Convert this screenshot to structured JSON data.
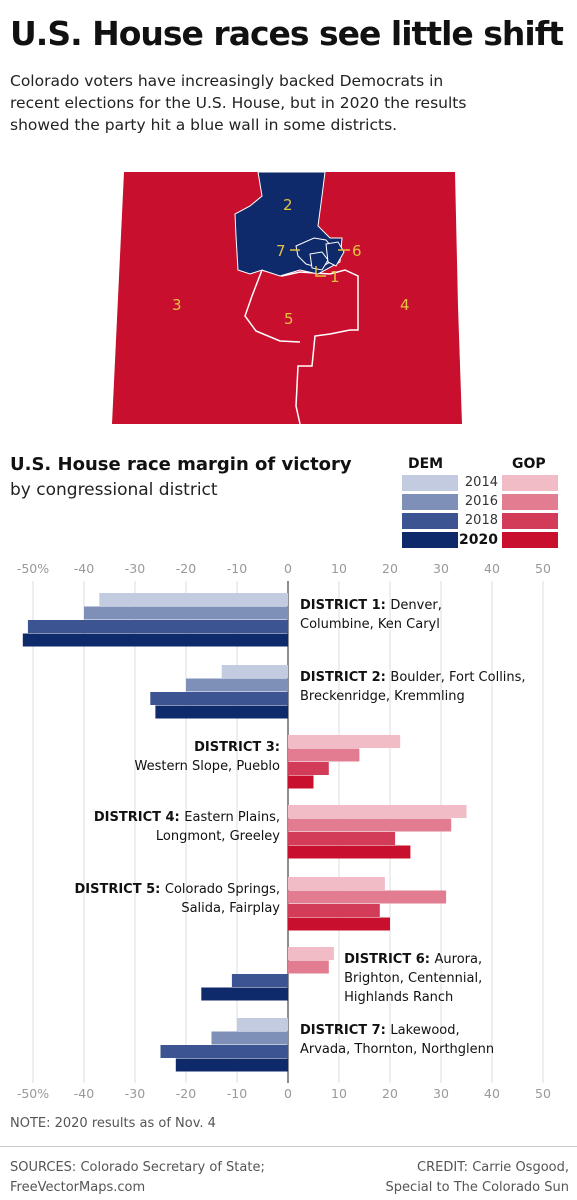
{
  "header": {
    "title": "U.S. House races see little shift",
    "subtitle_lines": [
      "Colorado voters have increasingly backed Democrats in",
      "recent elections for the U.S. House, but in 2020 the results",
      "showed the party hit a blue wall in some districts."
    ]
  },
  "map": {
    "district_labels": [
      "1",
      "2",
      "3",
      "4",
      "5",
      "6",
      "7"
    ],
    "colors": {
      "dem": "#0f2a6b",
      "gop": "#c8102e",
      "border": "#ffffff",
      "label": "#e3c240"
    }
  },
  "chart_title": "U.S. House race margin of victory",
  "chart_subtitle": "by congressional district",
  "legend": {
    "dem_heading": "DEM",
    "gop_heading": "GOP",
    "years": [
      "2014",
      "2016",
      "2018",
      "2020"
    ],
    "dem_colors": [
      "#c3cbe0",
      "#7e8fb8",
      "#3c5491",
      "#0f2a6b"
    ],
    "gop_colors": [
      "#f2bcc6",
      "#e27c90",
      "#d23c59",
      "#c8102e"
    ]
  },
  "chart_data": {
    "type": "bar",
    "orientation": "horizontal",
    "x_ticks": [
      "-50%",
      "-40",
      "-30",
      "-20",
      "-10",
      "0",
      "10",
      "20",
      "30",
      "40",
      "50"
    ],
    "xlim": [
      -52,
      50
    ],
    "grid": true,
    "series_years": [
      "2014",
      "2016",
      "2018",
      "2020"
    ],
    "districts": [
      {
        "name": "DISTRICT 1:",
        "desc_lines": [
          "Denver,",
          "Columbine, Ken Caryl"
        ],
        "label_side": "right",
        "values": [
          -37,
          -40,
          -51,
          -52
        ]
      },
      {
        "name": "DISTRICT 2:",
        "desc_lines": [
          "Boulder, Fort Collins,",
          "Breckenridge, Kremmling"
        ],
        "label_side": "right",
        "values": [
          -13,
          -20,
          -27,
          -26
        ]
      },
      {
        "name": "DISTRICT 3:",
        "desc_lines": [
          "",
          "Western Slope, Pueblo"
        ],
        "label_side": "left",
        "values": [
          22,
          14,
          8,
          5
        ]
      },
      {
        "name": "DISTRICT 4:",
        "desc_lines": [
          "Eastern Plains,",
          "Longmont, Greeley"
        ],
        "label_side": "left",
        "values": [
          35,
          32,
          21,
          24
        ]
      },
      {
        "name": "DISTRICT 5:",
        "desc_lines": [
          "Colorado Springs,",
          "Salida, Fairplay"
        ],
        "label_side": "left",
        "values": [
          19,
          31,
          18,
          20
        ]
      },
      {
        "name": "DISTRICT 6:",
        "desc_lines": [
          "Aurora,",
          "Brighton, Centennial,",
          "Highlands Ranch"
        ],
        "label_side": "right",
        "values": [
          9,
          8,
          -11,
          -17
        ]
      },
      {
        "name": "DISTRICT 7:",
        "desc_lines": [
          "Lakewood,",
          "Arvada, Thornton, Northglenn"
        ],
        "label_side": "right",
        "values": [
          -10,
          -15,
          -25,
          -22
        ]
      }
    ]
  },
  "footer": {
    "note": "NOTE: 2020 results as of Nov. 4",
    "sources_lines": [
      "SOURCES: Colorado Secretary of State;",
      "FreeVectorMaps.com"
    ],
    "credit_lines": [
      "CREDIT: Carrie Osgood,",
      "Special to The Colorado Sun"
    ]
  }
}
